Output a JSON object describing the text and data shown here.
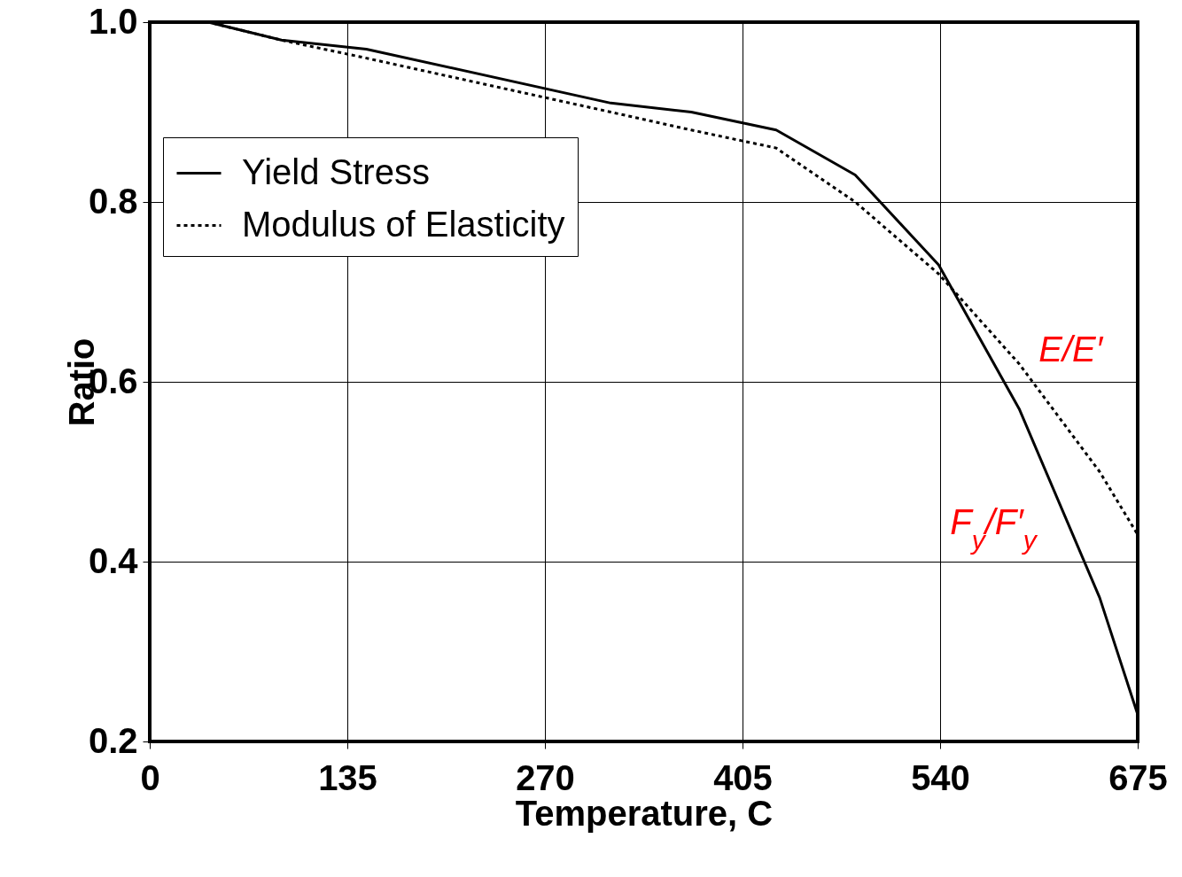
{
  "chart_data": {
    "type": "line",
    "x": [
      0,
      40,
      90,
      148,
      315,
      370,
      428,
      482,
      539,
      594,
      649,
      675
    ],
    "series": [
      {
        "name": "Yield Stress",
        "color": "#000000",
        "line_style": "solid",
        "values": [
          1.0,
          1.0,
          0.98,
          0.97,
          0.91,
          0.9,
          0.88,
          0.83,
          0.73,
          0.57,
          0.36,
          0.23
        ]
      },
      {
        "name": "Modulus of Elasticity",
        "color": "#000000",
        "line_style": "dotted",
        "values": [
          1.0,
          1.0,
          0.98,
          0.96,
          0.9,
          0.88,
          0.86,
          0.8,
          0.72,
          0.62,
          0.5,
          0.43
        ]
      }
    ],
    "xlabel": "Temperature, C",
    "ylabel": "Ratio",
    "xlim": [
      0,
      675
    ],
    "xticks": [
      0,
      135,
      270,
      405,
      540,
      675
    ],
    "ylim": [
      0.2,
      1.0
    ],
    "yticks": [
      {
        "value": 0.2,
        "label": "0.2"
      },
      {
        "value": 0.4,
        "label": "0.4"
      },
      {
        "value": 0.6,
        "label": "0.6"
      },
      {
        "value": 0.8,
        "label": "0.8"
      },
      {
        "value": 1,
        "label": "1.0"
      }
    ],
    "grid": true,
    "legend": "top left",
    "marker": "none",
    "annotations": [
      {
        "text": "E/E′",
        "x": 594,
        "y": 0.62
      },
      {
        "text": "F$_{y}$/F′$_{y}$",
        "x": 594,
        "y": 0.57
      }
    ]
  }
}
